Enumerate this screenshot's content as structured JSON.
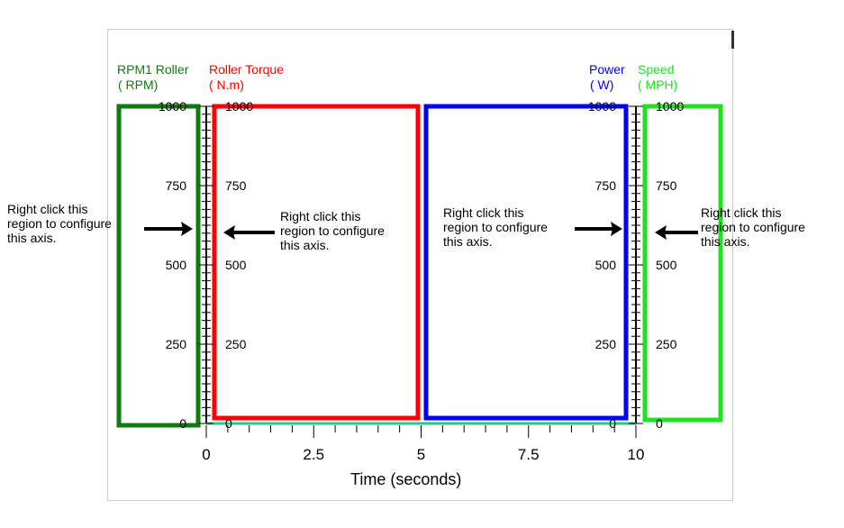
{
  "colors": {
    "rpm": "#0f7a10",
    "torque": "#ff0000",
    "power": "#0000ff",
    "speed": "#22e022",
    "axis": "#000000",
    "baseline": "#22cc88"
  },
  "axes": {
    "rpm": {
      "name": "RPM1 Roller",
      "unit": "( RPM)"
    },
    "torque": {
      "name": "Roller Torque",
      "unit": "( N.m)"
    },
    "power": {
      "name": "Power",
      "unit": "( W)"
    },
    "speed": {
      "name": "Speed",
      "unit": "( MPH)"
    }
  },
  "annotations": {
    "left": [
      "Right click this",
      "region to configure",
      "this axis."
    ],
    "torque_right": [
      "Right click this",
      "region to configure",
      "this axis."
    ],
    "power_left": [
      "Right click this",
      "region to configure",
      "this axis."
    ],
    "far_right": [
      "Right click this",
      "region to configure",
      "this axis."
    ]
  },
  "chart_data": {
    "type": "line",
    "xlabel": "Time (seconds)",
    "x_ticks": [
      "0",
      "2.5",
      "5",
      "7.5",
      "10"
    ],
    "xlim": [
      0,
      10
    ],
    "ylim": [
      0,
      1000
    ],
    "y_ticks": [
      "0",
      "250",
      "500",
      "750",
      "1000"
    ],
    "series": []
  }
}
